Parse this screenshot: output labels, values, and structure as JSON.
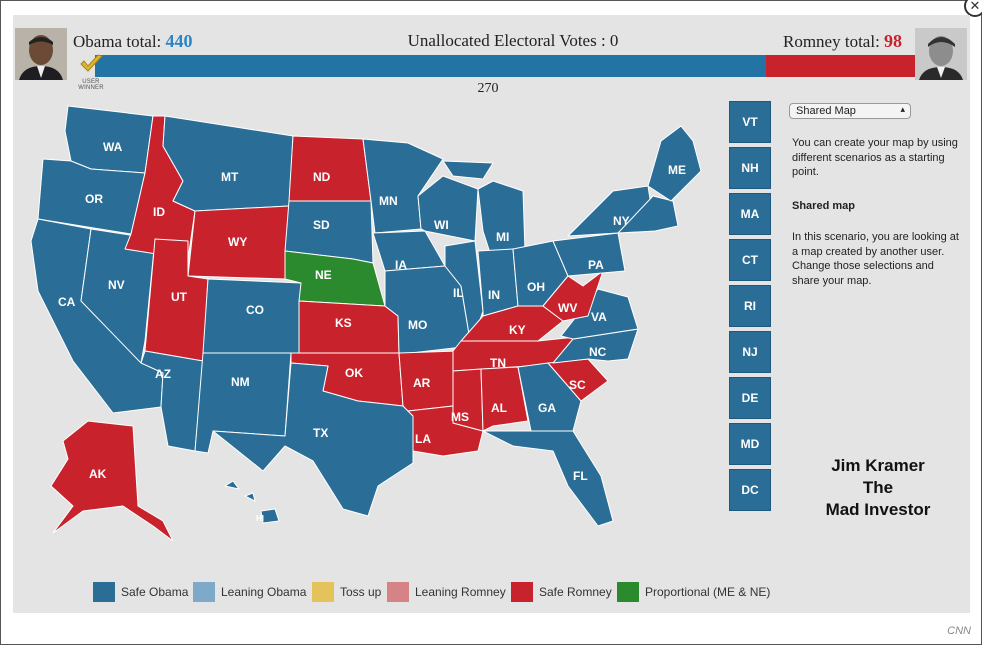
{
  "header": {
    "obama_label": "Obama total:",
    "obama_total": "440",
    "romney_label": "Romney total:",
    "romney_total": "98",
    "unallocated": "Unallocated Electoral Votes : 0",
    "threshold": "270",
    "winner_badge": "USER WINNER"
  },
  "bar": {
    "obama_share": 0.8178,
    "romney_share": 0.1822,
    "obama_color": "#2274a5",
    "romney_color": "#c8232c"
  },
  "map_labels": [
    "WA",
    "OR",
    "CA",
    "ID",
    "NV",
    "MT",
    "WY",
    "UT",
    "AZ",
    "CO",
    "NM",
    "ND",
    "SD",
    "NE",
    "KS",
    "OK",
    "TX",
    "MN",
    "IA",
    "MO",
    "AR",
    "LA",
    "WI",
    "IL",
    "MI",
    "IN",
    "OH",
    "KY",
    "TN",
    "MS",
    "AL",
    "GA",
    "FL",
    "SC",
    "NC",
    "VA",
    "WV",
    "PA",
    "NY",
    "ME",
    "AK",
    "HI"
  ],
  "northeast_buttons": [
    "VT",
    "NH",
    "MA",
    "CT",
    "RI",
    "NJ",
    "DE",
    "MD",
    "DC"
  ],
  "sidebar": {
    "select_value": "Shared Map",
    "intro": "You can create your map by using different scenarios as a starting point.",
    "section_title": "Shared map",
    "section_text": "In this scenario, you are looking at a map created by another user. Change those selections and share your map."
  },
  "overlay": {
    "line1": "Jim Kramer",
    "line2": "The",
    "line3": "Mad Investor"
  },
  "legend": [
    {
      "label": "Safe Obama",
      "color": "#2a6d96"
    },
    {
      "label": "Leaning Obama",
      "color": "#7fa9c8"
    },
    {
      "label": "Toss up",
      "color": "#e3c35a"
    },
    {
      "label": "Leaning Romney",
      "color": "#d58386"
    },
    {
      "label": "Safe Romney",
      "color": "#c8232c"
    },
    {
      "label": "Proportional (ME & NE)",
      "color": "#2b8a2e"
    }
  ],
  "credit": "CNN"
}
